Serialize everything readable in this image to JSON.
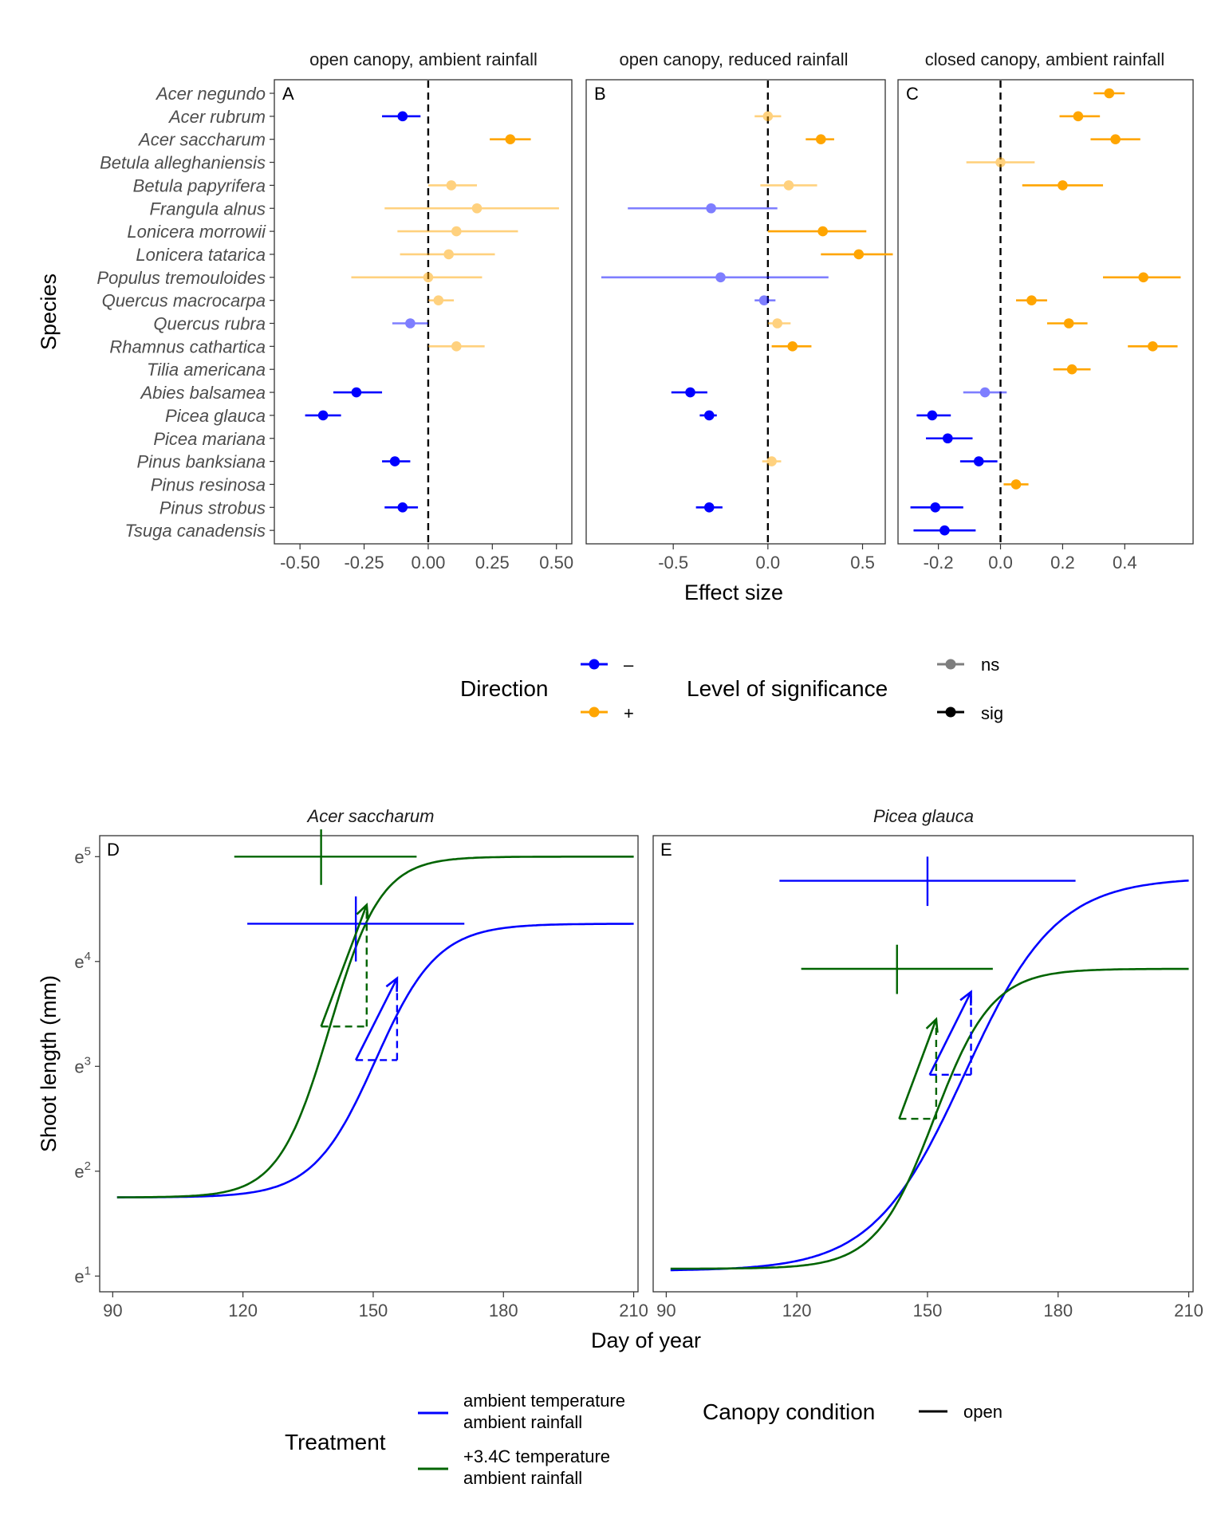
{
  "colors": {
    "negative": "#0000ff",
    "positive": "#ffa500",
    "ambient": "#0000ff",
    "warmed": "#006400"
  },
  "chart_data": [
    {
      "type": "scatter",
      "subtype": "forest-plot",
      "ylabel": "Species",
      "xlabel": "Effect size",
      "species": [
        "Acer negundo",
        "Acer rubrum",
        "Acer saccharum",
        "Betula alleghaniensis",
        "Betula papyrifera",
        "Frangula alnus",
        "Lonicera morrowii",
        "Lonicera tatarica",
        "Populus tremouloides",
        "Quercus macrocarpa",
        "Quercus rubra",
        "Rhamnus cathartica",
        "Tilia americana",
        "Abies balsamea",
        "Picea glauca",
        "Picea mariana",
        "Pinus banksiana",
        "Pinus resinosa",
        "Pinus strobus",
        "Tsuga canadensis"
      ],
      "panels": [
        {
          "tag": "A",
          "title": "open canopy, ambient rainfall",
          "xlim": [
            -0.6,
            0.56
          ],
          "xticks": [
            -0.5,
            -0.25,
            0,
            0.25,
            0.5
          ],
          "xtick_labels": [
            "-0.50",
            "-0.25",
            "0.00",
            "0.25",
            "0.50"
          ],
          "points": [
            {
              "sp": 1,
              "est": -0.1,
              "lo": -0.18,
              "hi": -0.03,
              "sig": true
            },
            {
              "sp": 2,
              "est": 0.32,
              "lo": 0.24,
              "hi": 0.4,
              "sig": true
            },
            {
              "sp": 4,
              "est": 0.09,
              "lo": 0.0,
              "hi": 0.19,
              "sig": false
            },
            {
              "sp": 5,
              "est": 0.19,
              "lo": -0.17,
              "hi": 0.51,
              "sig": false
            },
            {
              "sp": 6,
              "est": 0.11,
              "lo": -0.12,
              "hi": 0.35,
              "sig": false
            },
            {
              "sp": 7,
              "est": 0.08,
              "lo": -0.11,
              "hi": 0.26,
              "sig": false
            },
            {
              "sp": 8,
              "est": 0.0,
              "lo": -0.3,
              "hi": 0.21,
              "sig": false
            },
            {
              "sp": 9,
              "est": 0.04,
              "lo": 0.0,
              "hi": 0.1,
              "sig": false
            },
            {
              "sp": 10,
              "est": -0.07,
              "lo": -0.14,
              "hi": 0.0,
              "sig": false
            },
            {
              "sp": 11,
              "est": 0.11,
              "lo": 0.0,
              "hi": 0.22,
              "sig": false
            },
            {
              "sp": 13,
              "est": -0.28,
              "lo": -0.37,
              "hi": -0.18,
              "sig": true
            },
            {
              "sp": 14,
              "est": -0.41,
              "lo": -0.48,
              "hi": -0.34,
              "sig": true
            },
            {
              "sp": 16,
              "est": -0.13,
              "lo": -0.18,
              "hi": -0.07,
              "sig": true
            },
            {
              "sp": 18,
              "est": -0.1,
              "lo": -0.17,
              "hi": -0.04,
              "sig": true
            }
          ]
        },
        {
          "tag": "B",
          "title": "open canopy, reduced rainfall",
          "xlim": [
            -0.96,
            0.62
          ],
          "xticks": [
            -0.5,
            0,
            0.5
          ],
          "xtick_labels": [
            "-0.5",
            "0.0",
            "0.5"
          ],
          "points": [
            {
              "sp": 1,
              "est": 0.0,
              "lo": -0.07,
              "hi": 0.07,
              "sig": false
            },
            {
              "sp": 2,
              "est": 0.28,
              "lo": 0.2,
              "hi": 0.35,
              "sig": true
            },
            {
              "sp": 4,
              "est": 0.11,
              "lo": -0.04,
              "hi": 0.26,
              "sig": false
            },
            {
              "sp": 5,
              "est": -0.3,
              "lo": -0.74,
              "hi": 0.05,
              "sig": false
            },
            {
              "sp": 6,
              "est": 0.29,
              "lo": 0.0,
              "hi": 0.52,
              "sig": true
            },
            {
              "sp": 7,
              "est": 0.48,
              "lo": 0.28,
              "hi": 0.66,
              "sig": true
            },
            {
              "sp": 8,
              "est": -0.25,
              "lo": -0.88,
              "hi": 0.32,
              "sig": false
            },
            {
              "sp": 9,
              "est": -0.02,
              "lo": -0.07,
              "hi": 0.04,
              "sig": false
            },
            {
              "sp": 10,
              "est": 0.05,
              "lo": 0.0,
              "hi": 0.12,
              "sig": false
            },
            {
              "sp": 11,
              "est": 0.13,
              "lo": 0.02,
              "hi": 0.23,
              "sig": true
            },
            {
              "sp": 13,
              "est": -0.41,
              "lo": -0.51,
              "hi": -0.32,
              "sig": true
            },
            {
              "sp": 14,
              "est": -0.31,
              "lo": -0.36,
              "hi": -0.27,
              "sig": true
            },
            {
              "sp": 16,
              "est": 0.02,
              "lo": -0.03,
              "hi": 0.07,
              "sig": false
            },
            {
              "sp": 18,
              "est": -0.31,
              "lo": -0.38,
              "hi": -0.24,
              "sig": true
            }
          ]
        },
        {
          "tag": "C",
          "title": "closed canopy, ambient rainfall",
          "xlim": [
            -0.33,
            0.62
          ],
          "xticks": [
            -0.2,
            0,
            0.2,
            0.4
          ],
          "xtick_labels": [
            "-0.2",
            "0.0",
            "0.2",
            "0.4"
          ],
          "points": [
            {
              "sp": 0,
              "est": 0.35,
              "lo": 0.3,
              "hi": 0.4,
              "sig": true
            },
            {
              "sp": 1,
              "est": 0.25,
              "lo": 0.19,
              "hi": 0.32,
              "sig": true
            },
            {
              "sp": 2,
              "est": 0.37,
              "lo": 0.29,
              "hi": 0.45,
              "sig": true
            },
            {
              "sp": 3,
              "est": 0.0,
              "lo": -0.11,
              "hi": 0.11,
              "sig": false
            },
            {
              "sp": 4,
              "est": 0.2,
              "lo": 0.07,
              "hi": 0.33,
              "sig": true
            },
            {
              "sp": 8,
              "est": 0.46,
              "lo": 0.33,
              "hi": 0.58,
              "sig": true
            },
            {
              "sp": 9,
              "est": 0.1,
              "lo": 0.05,
              "hi": 0.15,
              "sig": true
            },
            {
              "sp": 10,
              "est": 0.22,
              "lo": 0.15,
              "hi": 0.28,
              "sig": true
            },
            {
              "sp": 11,
              "est": 0.49,
              "lo": 0.41,
              "hi": 0.57,
              "sig": true
            },
            {
              "sp": 12,
              "est": 0.23,
              "lo": 0.17,
              "hi": 0.29,
              "sig": true
            },
            {
              "sp": 13,
              "est": -0.05,
              "lo": -0.12,
              "hi": 0.02,
              "sig": false
            },
            {
              "sp": 14,
              "est": -0.22,
              "lo": -0.27,
              "hi": -0.16,
              "sig": true
            },
            {
              "sp": 15,
              "est": -0.17,
              "lo": -0.24,
              "hi": -0.09,
              "sig": true
            },
            {
              "sp": 16,
              "est": -0.07,
              "lo": -0.13,
              "hi": -0.01,
              "sig": true
            },
            {
              "sp": 17,
              "est": 0.05,
              "lo": 0.01,
              "hi": 0.09,
              "sig": true
            },
            {
              "sp": 18,
              "est": -0.21,
              "lo": -0.29,
              "hi": -0.12,
              "sig": true
            },
            {
              "sp": 19,
              "est": -0.18,
              "lo": -0.28,
              "hi": -0.08,
              "sig": true
            }
          ]
        }
      ],
      "legend": {
        "direction": {
          "title": "Direction",
          "items": [
            {
              "label": "–",
              "key": "negative"
            },
            {
              "label": "+",
              "key": "positive"
            }
          ]
        },
        "significance": {
          "title": "Level of significance",
          "items": [
            {
              "label": "ns",
              "alpha": 0.5
            },
            {
              "label": "sig",
              "alpha": 1
            }
          ]
        }
      }
    },
    {
      "type": "line",
      "xlabel": "Day of year",
      "ylabel": "Shoot length (mm)",
      "xlim": [
        87,
        211
      ],
      "ylim_log": [
        0.85,
        5.2
      ],
      "y_scale": "log (base e)",
      "xticks": [
        90,
        120,
        150,
        180,
        210
      ],
      "xtick_labels": [
        "90",
        "120",
        "150",
        "180",
        "210"
      ],
      "yticks": [
        1,
        2,
        3,
        4,
        5
      ],
      "ytick_base": "e",
      "panels": [
        {
          "tag": "D",
          "title": "Acer saccharum",
          "curves": [
            {
              "series": "ambient",
              "y0": 1.75,
              "ymax": 4.36,
              "mid": 150.5,
              "rate": 0.14,
              "x_start": 91,
              "x_end": 210
            },
            {
              "series": "warmed",
              "y0": 1.75,
              "ymax": 5.0,
              "mid": 140,
              "rate": 0.17,
              "x_start": 91,
              "x_end": 210
            }
          ],
          "crosses": [
            {
              "series": "ambient",
              "x": 146,
              "x_lo": 121,
              "x_hi": 171,
              "y": 4.36,
              "y_lo": 4.0,
              "y_hi": 4.62
            },
            {
              "series": "warmed",
              "x": 138,
              "x_lo": 118,
              "x_hi": 160,
              "y": 5.0,
              "y_lo": 4.73,
              "y_hi": 5.26
            }
          ],
          "growth_triangles": [
            {
              "series": "ambient",
              "x1": 146,
              "x2": 155.5,
              "y1": 3.06,
              "y2": 3.84
            },
            {
              "series": "warmed",
              "x1": 138,
              "x2": 148.5,
              "y1": 3.38,
              "y2": 4.54
            }
          ]
        },
        {
          "tag": "E",
          "title": "Picea glauca",
          "curves": [
            {
              "series": "ambient",
              "y0": 1.05,
              "ymax": 4.8,
              "mid": 158.5,
              "rate": 0.095,
              "x_start": 91,
              "x_end": 210
            },
            {
              "series": "warmed",
              "y0": 1.07,
              "ymax": 3.93,
              "mid": 151.5,
              "rate": 0.15,
              "x_start": 91,
              "x_end": 210
            }
          ],
          "crosses": [
            {
              "series": "ambient",
              "x": 150,
              "x_lo": 116,
              "x_hi": 184,
              "y": 4.77,
              "y_lo": 4.53,
              "y_hi": 5.0
            },
            {
              "series": "warmed",
              "x": 143,
              "x_lo": 121,
              "x_hi": 165,
              "y": 3.93,
              "y_lo": 3.69,
              "y_hi": 4.16
            }
          ],
          "growth_triangles": [
            {
              "series": "ambient",
              "x1": 150.5,
              "x2": 160,
              "y1": 2.92,
              "y2": 3.71
            },
            {
              "series": "warmed",
              "x1": 143.5,
              "x2": 152,
              "y1": 2.5,
              "y2": 3.45
            }
          ]
        }
      ],
      "legend": {
        "treatment": {
          "title": "Treatment",
          "items": [
            {
              "key": "ambient",
              "lines": [
                "ambient temperature",
                "ambient rainfall"
              ]
            },
            {
              "key": "warmed",
              "lines": [
                "+3.4C temperature",
                "ambient rainfall"
              ]
            }
          ]
        },
        "canopy": {
          "title": "Canopy condition",
          "items": [
            {
              "label": "open"
            }
          ]
        }
      }
    }
  ]
}
